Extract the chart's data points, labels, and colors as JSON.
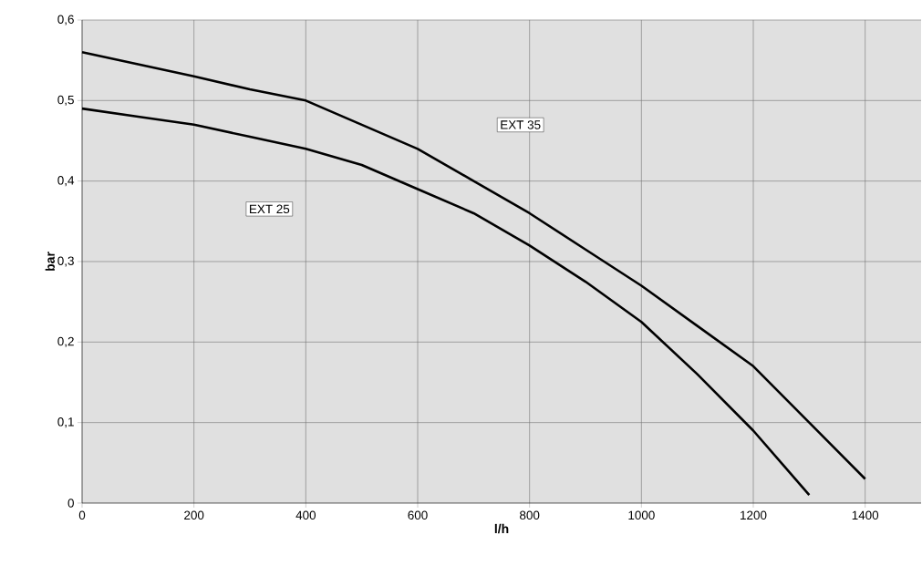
{
  "chart_data": {
    "type": "line",
    "xlabel": "l/h",
    "ylabel": "bar",
    "x": [
      0,
      100,
      200,
      300,
      400,
      500,
      600,
      700,
      800,
      900,
      1000,
      1100,
      1200,
      1300,
      1400
    ],
    "series": [
      {
        "name": "EXT 35",
        "color": "#000000",
        "values": [
          0.56,
          0.545,
          0.53,
          0.514,
          0.5,
          0.47,
          0.44,
          0.4,
          0.36,
          0.315,
          0.27,
          0.22,
          0.17,
          0.1,
          0.03
        ]
      },
      {
        "name": "EXT 25",
        "color": "#000000",
        "values": [
          0.49,
          0.48,
          0.47,
          0.455,
          0.44,
          0.42,
          0.39,
          0.36,
          0.32,
          0.275,
          0.225,
          0.16,
          0.09,
          0.01,
          null
        ]
      }
    ],
    "xlim": [
      0,
      1500
    ],
    "ylim": [
      0,
      0.6
    ],
    "xticks": [
      0,
      200,
      400,
      600,
      800,
      1000,
      1200,
      1400
    ],
    "yticks": [
      0,
      {
        "value": 0.1,
        "label": "0,1"
      },
      {
        "value": 0.2,
        "label": "0,2"
      },
      {
        "value": 0.3,
        "label": "0,3"
      },
      {
        "value": 0.4,
        "label": "0,4"
      },
      {
        "value": 0.5,
        "label": "0,5"
      },
      {
        "value": 0.6,
        "label": "0,6"
      }
    ],
    "grid": true
  }
}
